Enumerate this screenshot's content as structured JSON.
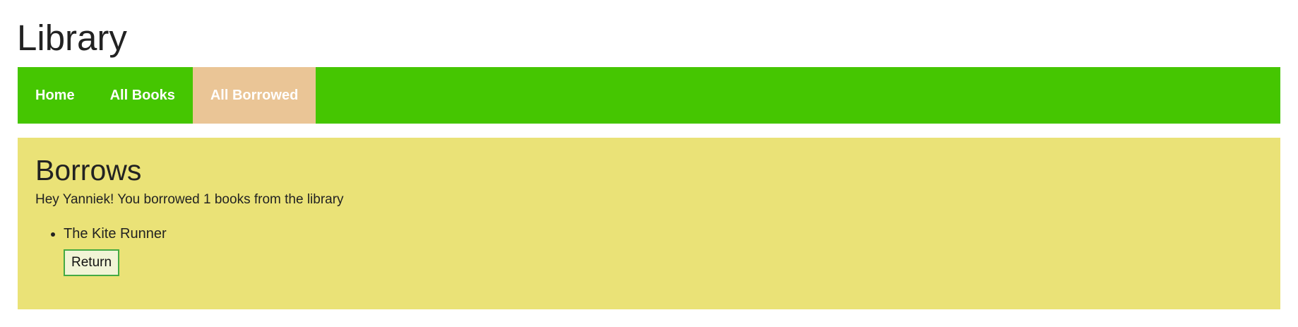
{
  "header": {
    "title": "Library"
  },
  "nav": {
    "items": [
      {
        "label": "Home",
        "active": false
      },
      {
        "label": "All Books",
        "active": false
      },
      {
        "label": "All Borrowed",
        "active": true
      }
    ]
  },
  "main": {
    "heading": "Borrows",
    "intro": "Hey Yanniek! You borrowed 1 books from the library",
    "borrows": [
      {
        "title": "The Kite Runner",
        "action_label": "Return"
      }
    ]
  },
  "colors": {
    "nav_background": "#45c601",
    "nav_active": "#eac596",
    "content_background": "#eae277",
    "button_border": "#44aa44"
  }
}
